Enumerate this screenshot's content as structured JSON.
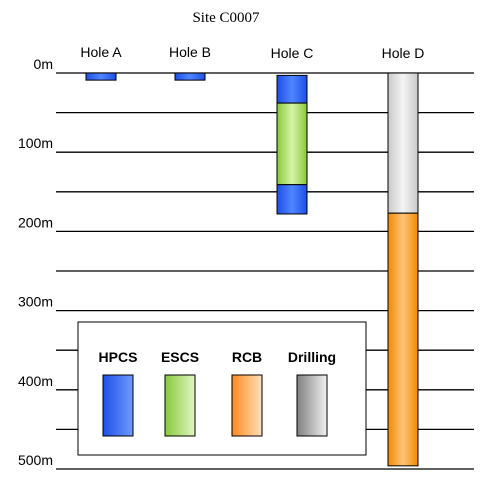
{
  "title": "Site C0007",
  "depth_axis": {
    "unit": "m",
    "min": 0,
    "max": 500,
    "gridline_step": 50,
    "labeled_ticks": [
      {
        "value": 0,
        "label": "0m"
      },
      {
        "value": 100,
        "label": "100m"
      },
      {
        "value": 200,
        "label": "200m"
      },
      {
        "value": 300,
        "label": "300m"
      },
      {
        "value": 400,
        "label": "400m"
      },
      {
        "value": 500,
        "label": "500m"
      }
    ]
  },
  "holes": [
    {
      "name": "Hole A",
      "intervals": [
        {
          "method": "HPCS",
          "top": 0,
          "bottom": 9
        }
      ]
    },
    {
      "name": "Hole B",
      "intervals": [
        {
          "method": "HPCS",
          "top": 0,
          "bottom": 9
        }
      ]
    },
    {
      "name": "Hole C",
      "intervals": [
        {
          "method": "HPCS",
          "top": 3,
          "bottom": 38
        },
        {
          "method": "ESCS",
          "top": 38,
          "bottom": 141
        },
        {
          "method": "HPCS",
          "top": 141,
          "bottom": 178
        }
      ]
    },
    {
      "name": "Hole D",
      "intervals": [
        {
          "method": "Drilling",
          "top": 0,
          "bottom": 177
        },
        {
          "method": "RCB",
          "top": 177,
          "bottom": 496
        }
      ]
    }
  ],
  "legend": [
    {
      "method": "HPCS",
      "label": "HPCS",
      "color": "#3a6cf5"
    },
    {
      "method": "ESCS",
      "label": "ESCS",
      "color": "#9ed65a"
    },
    {
      "method": "RCB",
      "label": "RCB",
      "color": "#ff9f2f"
    },
    {
      "method": "Drilling",
      "label": "Drilling",
      "color": "#a3a3a3"
    }
  ],
  "fills": {
    "HPCS": {
      "edge": "#1f4ee8",
      "mid": "#4f86ff"
    },
    "ESCS": {
      "edge": "#8ac83a",
      "mid": "#d6f3a8"
    },
    "RCB": {
      "edge": "#f08a00",
      "mid": "#ffc47a"
    },
    "Drilling": {
      "edge": "#c9c9c9",
      "mid": "#f4f4f4"
    }
  },
  "legend_fills": {
    "HPCS": {
      "from": "#1e4fe6",
      "to": "#6f9bff"
    },
    "ESCS": {
      "from": "#86c93a",
      "to": "#e2f6c3"
    },
    "RCB": {
      "from": "#ff8a1a",
      "to": "#ffe0bf"
    },
    "Drilling": {
      "from": "#808080",
      "to": "#f1f1f1"
    }
  }
}
